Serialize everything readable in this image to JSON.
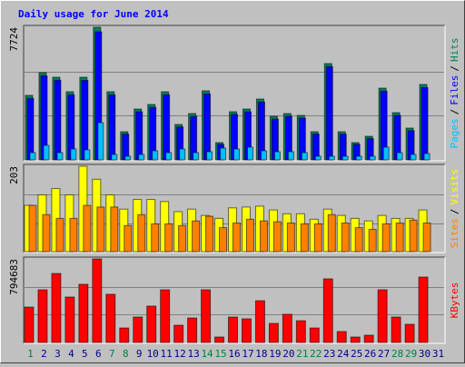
{
  "chart_data": [
    {
      "type": "bar",
      "title": "Daily usage for June 2014",
      "categories": [
        "1",
        "2",
        "3",
        "4",
        "5",
        "6",
        "7",
        "8",
        "9",
        "10",
        "11",
        "12",
        "13",
        "14",
        "15",
        "16",
        "17",
        "18",
        "19",
        "20",
        "21",
        "22",
        "23",
        "24",
        "25",
        "26",
        "27",
        "28",
        "29",
        "30",
        "31"
      ],
      "category_colors": [
        "#008040",
        "#00008b",
        "#00008b",
        "#00008b",
        "#00008b",
        "#00008b",
        "#008040",
        "#008040",
        "#00008b",
        "#00008b",
        "#00008b",
        "#00008b",
        "#00008b",
        "#008040",
        "#008040",
        "#00008b",
        "#00008b",
        "#00008b",
        "#00008b",
        "#00008b",
        "#008040",
        "#008040",
        "#00008b",
        "#00008b",
        "#00008b",
        "#00008b",
        "#00008b",
        "#008040",
        "#008040",
        "#00008b",
        "#00008b"
      ],
      "separator": "/",
      "ylim": [
        0,
        7724
      ],
      "yticks": [
        7724
      ],
      "series": [
        {
          "name": "Pages",
          "color": "#00c0ff",
          "values": [
            423,
            846,
            423,
            635,
            582,
            2169,
            317,
            212,
            317,
            529,
            423,
            635,
            423,
            476,
            688,
            635,
            741,
            529,
            476,
            476,
            423,
            212,
            212,
            212,
            212,
            212,
            741,
            423,
            317,
            370,
            null
          ]
        },
        {
          "name": "Files",
          "color": "#0000ff",
          "values": [
            3580,
            4890,
            4640,
            3790,
            4630,
            7460,
            3790,
            1500,
            2800,
            3060,
            3790,
            1920,
            2530,
            3840,
            900,
            2650,
            2800,
            3370,
            2380,
            2540,
            2430,
            1500,
            5430,
            1500,
            900,
            1240,
            4000,
            2590,
            1700,
            4210,
            null
          ]
        },
        {
          "name": "Hits",
          "color": "#00805c",
          "values": [
            3756,
            5079,
            4814,
            3968,
            4814,
            7724,
            3968,
            1640,
            2963,
            3227,
            3968,
            2063,
            2698,
            4021,
            1005,
            2804,
            2963,
            3545,
            2539,
            2698,
            2592,
            1640,
            5608,
            1640,
            1005,
            1375,
            4179,
            2751,
            1852,
            4391,
            null
          ]
        }
      ]
    },
    {
      "type": "bar",
      "ylim": [
        0,
        203
      ],
      "yticks": [
        203
      ],
      "series": [
        {
          "name": "Sites",
          "color": "#ff8000",
          "values": [
            110,
            88,
            79,
            79,
            110,
            106,
            106,
            62,
            88,
            66,
            66,
            62,
            73,
            84,
            57,
            68,
            77,
            73,
            71,
            68,
            66,
            66,
            88,
            68,
            57,
            53,
            66,
            68,
            75,
            68,
            null
          ]
        },
        {
          "name": "Visits",
          "color": "#ffff00",
          "values": [
            110,
            135,
            150,
            135,
            203,
            172,
            135,
            101,
            124,
            124,
            119,
            95,
            101,
            86,
            79,
            104,
            106,
            108,
            99,
            90,
            90,
            77,
            101,
            86,
            79,
            73,
            86,
            79,
            79,
            99,
            null
          ]
        }
      ]
    },
    {
      "type": "bar",
      "ylim": [
        0,
        794683
      ],
      "yticks": [
        794683
      ],
      "series": [
        {
          "name": "KBytes",
          "color": "#ff0000",
          "values": [
            336881,
            501000,
            656000,
            432000,
            553000,
            794683,
            458000,
            138000,
            242000,
            346000,
            501000,
            164000,
            233000,
            501000,
            52000,
            242000,
            225000,
            397000,
            181000,
            268000,
            207000,
            138000,
            605000,
            104000,
            52000,
            69000,
            501000,
            242000,
            173000,
            622000,
            null
          ]
        }
      ]
    }
  ]
}
